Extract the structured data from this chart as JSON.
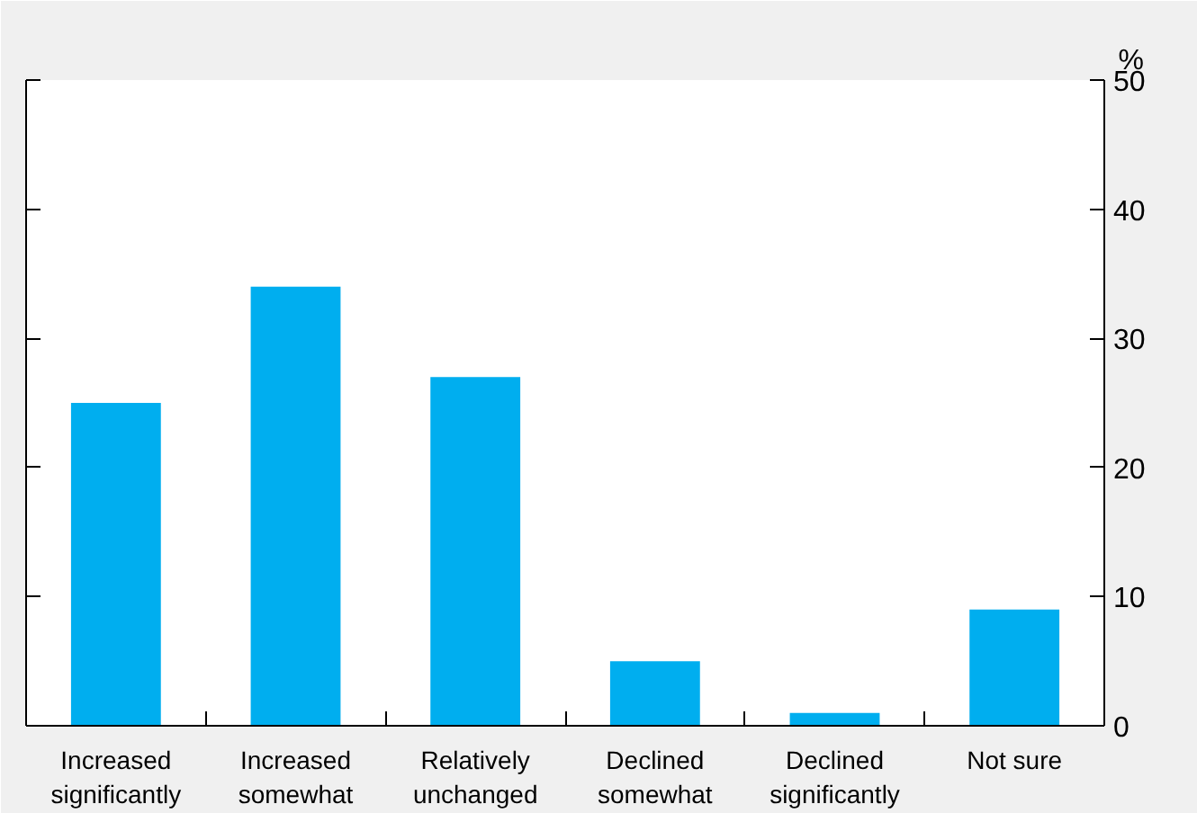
{
  "chart_data": {
    "type": "bar",
    "ylabel": "%",
    "categories": [
      "Increased significantly",
      "Increased somewhat",
      "Relatively unchanged",
      "Declined somewhat",
      "Declined significantly",
      "Not sure"
    ],
    "values": [
      25,
      34,
      27,
      5,
      1,
      9
    ],
    "color": "#00aeef",
    "ylim": [
      0,
      50
    ],
    "yticks": [
      0,
      10,
      20,
      30,
      40,
      50
    ],
    "grid": false
  }
}
